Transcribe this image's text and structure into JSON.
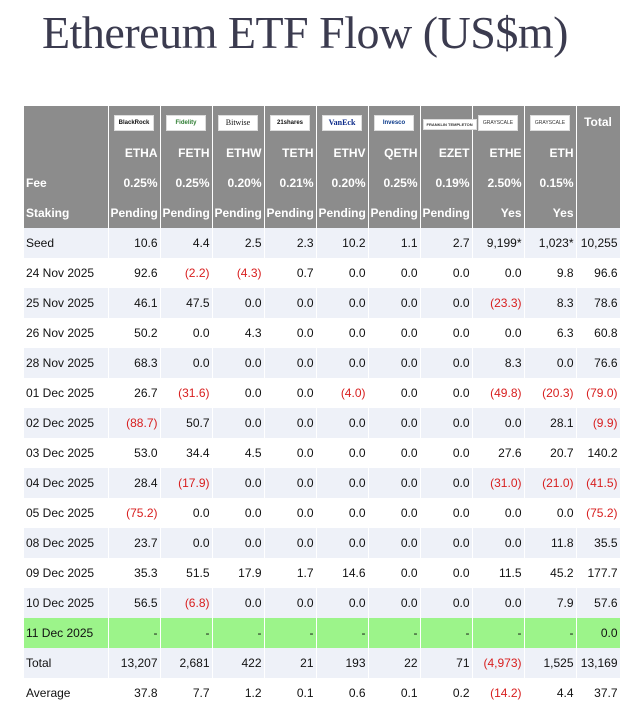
{
  "title": "Ethereum ETF Flow (US$m)",
  "colors": {
    "header_bg": "#8c8c8c",
    "alt_row": "#eef1f8",
    "highlight_row": "#9cf48a",
    "negative": "#d81e1e"
  },
  "issuers": [
    "BlackRock",
    "Fidelity",
    "Bitwise",
    "21shares",
    "VanEck",
    "Invesco",
    "FRANKLIN TEMPLETON",
    "GRAYSCALE",
    "GRAYSCALE"
  ],
  "total_header": "Total",
  "tickers": [
    "ETHA",
    "FETH",
    "ETHW",
    "TETH",
    "ETHV",
    "QETH",
    "EZET",
    "ETHE",
    "ETH"
  ],
  "fee": {
    "label": "Fee",
    "values": [
      "0.25%",
      "0.25%",
      "0.20%",
      "0.21%",
      "0.20%",
      "0.25%",
      "0.19%",
      "2.50%",
      "0.15%"
    ]
  },
  "staking": {
    "label": "Staking",
    "values": [
      "Pending",
      "Pending",
      "Pending",
      "Pending",
      "Pending",
      "Pending",
      "Pending",
      "Yes",
      "Yes"
    ]
  },
  "rows": [
    {
      "label": "Seed",
      "values": [
        "10.6",
        "4.4",
        "2.5",
        "2.3",
        "10.2",
        "1.1",
        "2.7",
        "9,199*",
        "1,023*",
        "10,255"
      ]
    },
    {
      "label": "24 Nov 2025",
      "values": [
        "92.6",
        "(2.2)",
        "(4.3)",
        "0.7",
        "0.0",
        "0.0",
        "0.0",
        "0.0",
        "9.8",
        "96.6"
      ]
    },
    {
      "label": "25 Nov 2025",
      "values": [
        "46.1",
        "47.5",
        "0.0",
        "0.0",
        "0.0",
        "0.0",
        "0.0",
        "(23.3)",
        "8.3",
        "78.6"
      ]
    },
    {
      "label": "26 Nov 2025",
      "values": [
        "50.2",
        "0.0",
        "4.3",
        "0.0",
        "0.0",
        "0.0",
        "0.0",
        "0.0",
        "6.3",
        "60.8"
      ]
    },
    {
      "label": "28 Nov 2025",
      "values": [
        "68.3",
        "0.0",
        "0.0",
        "0.0",
        "0.0",
        "0.0",
        "0.0",
        "8.3",
        "0.0",
        "76.6"
      ]
    },
    {
      "label": "01 Dec 2025",
      "values": [
        "26.7",
        "(31.6)",
        "0.0",
        "0.0",
        "(4.0)",
        "0.0",
        "0.0",
        "(49.8)",
        "(20.3)",
        "(79.0)"
      ]
    },
    {
      "label": "02 Dec 2025",
      "values": [
        "(88.7)",
        "50.7",
        "0.0",
        "0.0",
        "0.0",
        "0.0",
        "0.0",
        "0.0",
        "28.1",
        "(9.9)"
      ]
    },
    {
      "label": "03 Dec 2025",
      "values": [
        "53.0",
        "34.4",
        "4.5",
        "0.0",
        "0.0",
        "0.0",
        "0.0",
        "27.6",
        "20.7",
        "140.2"
      ]
    },
    {
      "label": "04 Dec 2025",
      "values": [
        "28.4",
        "(17.9)",
        "0.0",
        "0.0",
        "0.0",
        "0.0",
        "0.0",
        "(31.0)",
        "(21.0)",
        "(41.5)"
      ]
    },
    {
      "label": "05 Dec 2025",
      "values": [
        "(75.2)",
        "0.0",
        "0.0",
        "0.0",
        "0.0",
        "0.0",
        "0.0",
        "0.0",
        "0.0",
        "(75.2)"
      ]
    },
    {
      "label": "08 Dec 2025",
      "values": [
        "23.7",
        "0.0",
        "0.0",
        "0.0",
        "0.0",
        "0.0",
        "0.0",
        "0.0",
        "11.8",
        "35.5"
      ]
    },
    {
      "label": "09 Dec 2025",
      "values": [
        "35.3",
        "51.5",
        "17.9",
        "1.7",
        "14.6",
        "0.0",
        "0.0",
        "11.5",
        "45.2",
        "177.7"
      ]
    },
    {
      "label": "10 Dec 2025",
      "values": [
        "56.5",
        "(6.8)",
        "0.0",
        "0.0",
        "0.0",
        "0.0",
        "0.0",
        "0.0",
        "7.9",
        "57.6"
      ]
    },
    {
      "label": "11 Dec 2025",
      "values": [
        "-",
        "-",
        "-",
        "-",
        "-",
        "-",
        "-",
        "-",
        "-",
        "0.0"
      ]
    },
    {
      "label": "Total",
      "values": [
        "13,207",
        "2,681",
        "422",
        "21",
        "193",
        "22",
        "71",
        "(4,973)",
        "1,525",
        "13,169"
      ]
    },
    {
      "label": "Average",
      "values": [
        "37.8",
        "7.7",
        "1.2",
        "0.1",
        "0.6",
        "0.1",
        "0.2",
        "(14.2)",
        "4.4",
        "37.7"
      ]
    }
  ]
}
